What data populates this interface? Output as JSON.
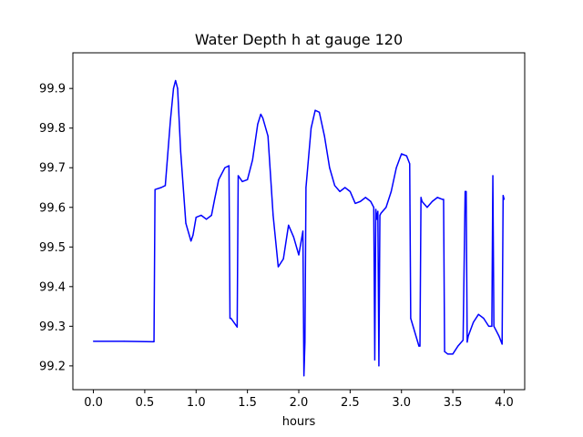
{
  "chart_data": {
    "type": "line",
    "title": "Water Depth h at gauge 120",
    "xlabel": "hours",
    "ylabel": "",
    "xlim": [
      -0.2,
      4.2
    ],
    "ylim": [
      99.14,
      99.99
    ],
    "xticks": [
      0.0,
      0.5,
      1.0,
      1.5,
      2.0,
      2.5,
      3.0,
      3.5,
      4.0
    ],
    "xtick_labels": [
      "0.0",
      "0.5",
      "1.0",
      "1.5",
      "2.0",
      "2.5",
      "3.0",
      "3.5",
      "4.0"
    ],
    "yticks": [
      99.2,
      99.3,
      99.4,
      99.5,
      99.6,
      99.7,
      99.8,
      99.9
    ],
    "ytick_labels": [
      "99.2",
      "99.3",
      "99.4",
      "99.5",
      "99.6",
      "99.7",
      "99.8",
      "99.9"
    ],
    "grid": false,
    "series": [
      {
        "color": "#0000ff",
        "x": [
          0.0,
          0.3,
          0.58,
          0.59,
          0.6,
          0.66,
          0.7,
          0.75,
          0.78,
          0.8,
          0.82,
          0.85,
          0.9,
          0.95,
          0.97,
          1.0,
          1.05,
          1.1,
          1.15,
          1.18,
          1.22,
          1.28,
          1.32,
          1.33,
          1.34,
          1.4,
          1.41,
          1.45,
          1.5,
          1.55,
          1.6,
          1.63,
          1.65,
          1.7,
          1.75,
          1.8,
          1.85,
          1.9,
          1.95,
          2.0,
          2.04,
          2.05,
          2.06,
          2.07,
          2.08,
          2.12,
          2.16,
          2.2,
          2.25,
          2.3,
          2.35,
          2.4,
          2.45,
          2.5,
          2.55,
          2.6,
          2.65,
          2.7,
          2.73,
          2.74,
          2.75,
          2.76,
          2.77,
          2.78,
          2.79,
          2.8,
          2.85,
          2.9,
          2.95,
          3.0,
          3.05,
          3.08,
          3.09,
          3.17,
          3.18,
          3.19,
          3.2,
          3.25,
          3.3,
          3.35,
          3.4,
          3.41,
          3.42,
          3.45,
          3.5,
          3.55,
          3.6,
          3.62,
          3.63,
          3.64,
          3.65,
          3.7,
          3.75,
          3.8,
          3.85,
          3.88,
          3.89,
          3.9,
          3.92,
          3.95,
          3.98,
          3.99,
          4.0
        ],
        "y": [
          99.262,
          99.262,
          99.261,
          99.261,
          99.645,
          99.65,
          99.655,
          99.82,
          99.9,
          99.92,
          99.9,
          99.74,
          99.56,
          99.515,
          99.53,
          99.575,
          99.58,
          99.57,
          99.58,
          99.62,
          99.67,
          99.7,
          99.705,
          99.32,
          99.32,
          99.298,
          99.68,
          99.665,
          99.67,
          99.72,
          99.81,
          99.835,
          99.825,
          99.78,
          99.58,
          99.45,
          99.47,
          99.555,
          99.525,
          99.48,
          99.54,
          99.175,
          99.26,
          99.65,
          99.68,
          99.8,
          99.845,
          99.84,
          99.78,
          99.7,
          99.655,
          99.64,
          99.65,
          99.64,
          99.61,
          99.615,
          99.625,
          99.615,
          99.6,
          99.215,
          99.595,
          99.57,
          99.59,
          99.2,
          99.58,
          99.585,
          99.6,
          99.64,
          99.7,
          99.735,
          99.73,
          99.71,
          99.32,
          99.25,
          99.25,
          99.625,
          99.615,
          99.6,
          99.615,
          99.625,
          99.62,
          99.62,
          99.236,
          99.23,
          99.23,
          99.25,
          99.265,
          99.64,
          99.64,
          99.26,
          99.275,
          99.31,
          99.33,
          99.32,
          99.3,
          99.3,
          99.68,
          99.3,
          99.29,
          99.275,
          99.255,
          99.63,
          99.62
        ]
      }
    ]
  }
}
